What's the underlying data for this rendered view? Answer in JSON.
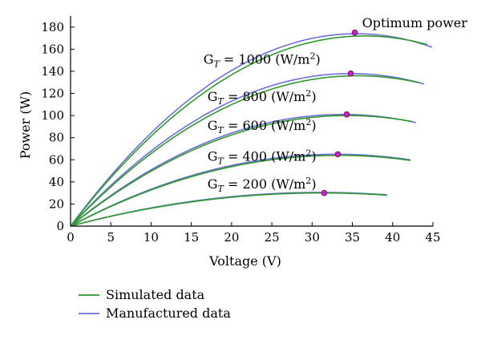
{
  "chart_data": {
    "type": "line",
    "xlabel": "Voltage (V)",
    "ylabel": "Power (W)",
    "xlim": [
      0,
      45
    ],
    "ylim": [
      0,
      190
    ],
    "xticks": [
      0,
      5,
      10,
      15,
      20,
      25,
      30,
      35,
      40,
      45
    ],
    "yticks": [
      0,
      20,
      40,
      60,
      80,
      100,
      120,
      140,
      160,
      180
    ],
    "grid": false,
    "legend_position": "bottom-left",
    "colors": {
      "simulated": "#2e9a2e",
      "manufactured": "#6f6fd9",
      "marker_fill": "#d020c0"
    },
    "legend": [
      {
        "label": "Simulated data",
        "color": "#2e9a2e"
      },
      {
        "label": "Manufactured data",
        "color": "#6f6fd9"
      }
    ],
    "irradiance_levels": [
      {
        "prefix": "G",
        "sub": "T",
        "text": " = 1000 (W/m",
        "sup": "2",
        "close": ")",
        "label_pos": [
          16.5,
          147
        ],
        "simulated": {
          "voc": 44.3,
          "vmp": 36.5,
          "pmp": 172
        },
        "manufactured": {
          "voc": 44.9,
          "vmp": 35.5,
          "pmp": 174
        },
        "optimum": [
          35.3,
          175
        ]
      },
      {
        "prefix": "G",
        "sub": "T",
        "text": " = 800 (W/m",
        "sup": "2",
        "close": ")",
        "label_pos": [
          17.0,
          113
        ],
        "simulated": {
          "voc": 43.3,
          "vmp": 35.6,
          "pmp": 136
        },
        "manufactured": {
          "voc": 43.9,
          "vmp": 34.8,
          "pmp": 138
        },
        "optimum": [
          34.8,
          138
        ]
      },
      {
        "prefix": "G",
        "sub": "T",
        "text": " = 600 (W/m",
        "sup": "2",
        "close": ")",
        "label_pos": [
          17.0,
          87
        ],
        "simulated": {
          "voc": 42.5,
          "vmp": 34.4,
          "pmp": 100
        },
        "manufactured": {
          "voc": 42.9,
          "vmp": 33.8,
          "pmp": 101
        },
        "optimum": [
          34.3,
          101
        ]
      },
      {
        "prefix": "G",
        "sub": "T",
        "text": " = 400 (W/m",
        "sup": "2",
        "close": ")",
        "label_pos": [
          17.0,
          59
        ],
        "simulated": {
          "voc": 42.2,
          "vmp": 33.3,
          "pmp": 64
        },
        "manufactured": {
          "voc": 42.2,
          "vmp": 33.0,
          "pmp": 65
        },
        "optimum": [
          33.2,
          65
        ]
      },
      {
        "prefix": "G",
        "sub": "T",
        "text": " = 200 (W/m",
        "sup": "2",
        "close": ")",
        "label_pos": [
          17.0,
          34
        ],
        "simulated": {
          "voc": 39.3,
          "vmp": 31.2,
          "pmp": 30
        },
        "manufactured": {
          "voc": 39.3,
          "vmp": 31.0,
          "pmp": 30.5
        },
        "optimum": [
          31.5,
          30
        ]
      }
    ],
    "annotation": {
      "text": "Optimum power",
      "pos": [
        36.2,
        180
      ]
    }
  }
}
